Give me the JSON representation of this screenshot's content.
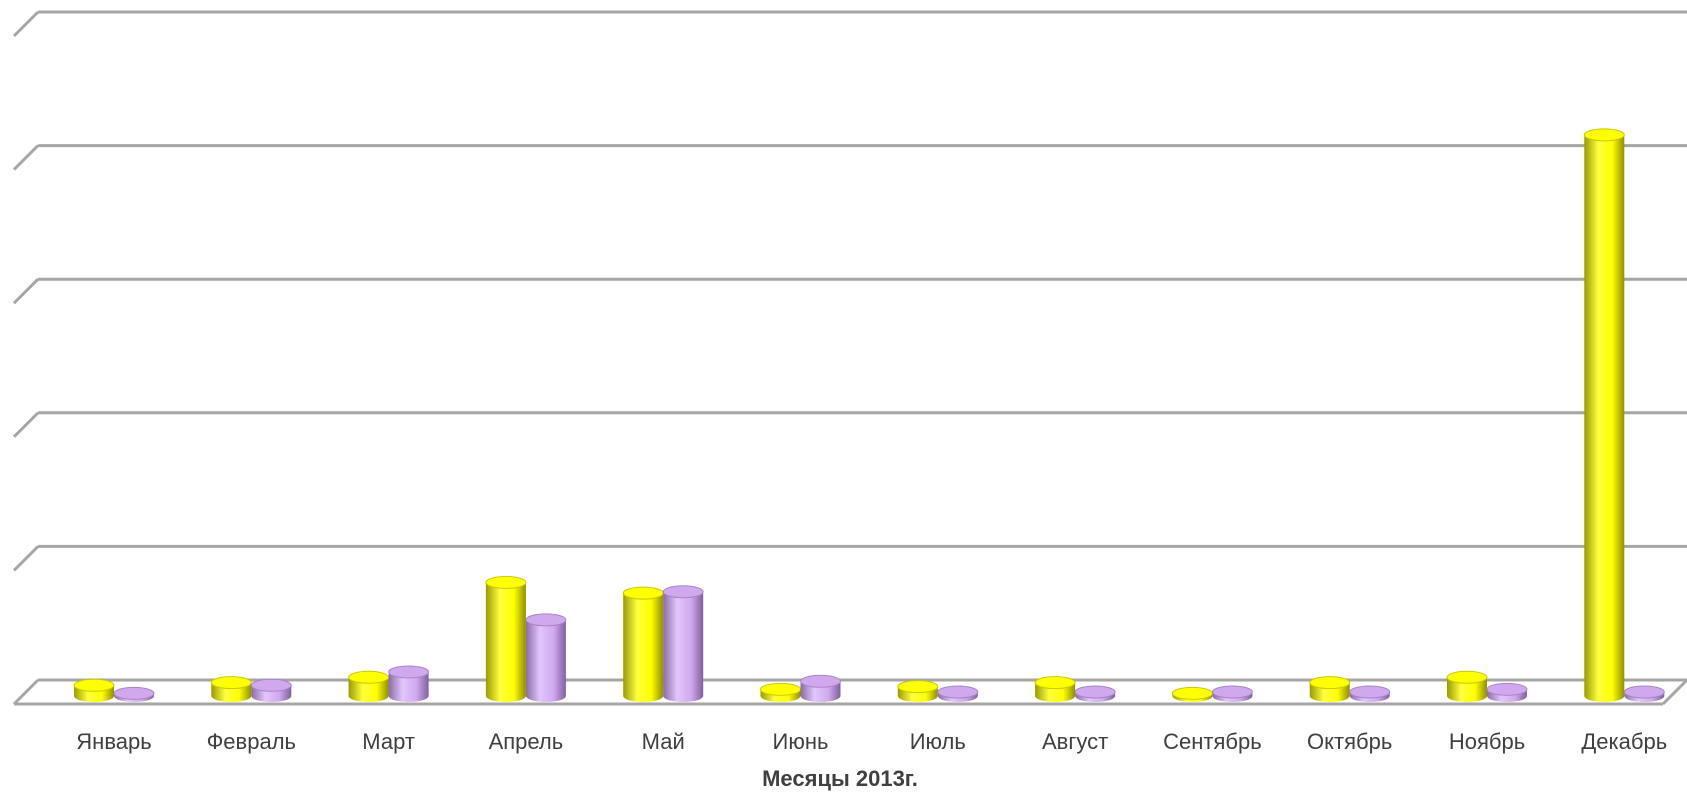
{
  "chart_data": {
    "type": "bar",
    "style": "3d-cylinder",
    "xlabel": "Месяцы 2013г.",
    "ylabel": "",
    "grid": true,
    "ylim": [
      0,
      5
    ],
    "categories": [
      "Январь",
      "Февраль",
      "Март",
      "Апрель",
      "Май",
      "Июнь",
      "Июль",
      "Август",
      "Сентябрь",
      "Октябрь",
      "Ноябрь",
      "Декабрь"
    ],
    "series": [
      {
        "color": "#ffff00",
        "values": [
          0.08,
          0.1,
          0.14,
          0.85,
          0.77,
          0.05,
          0.07,
          0.1,
          0.02,
          0.1,
          0.14,
          4.2
        ]
      },
      {
        "color": "#cfa8ee",
        "values": [
          0.02,
          0.08,
          0.18,
          0.57,
          0.78,
          0.11,
          0.03,
          0.03,
          0.03,
          0.03,
          0.05,
          0.03
        ]
      }
    ]
  }
}
